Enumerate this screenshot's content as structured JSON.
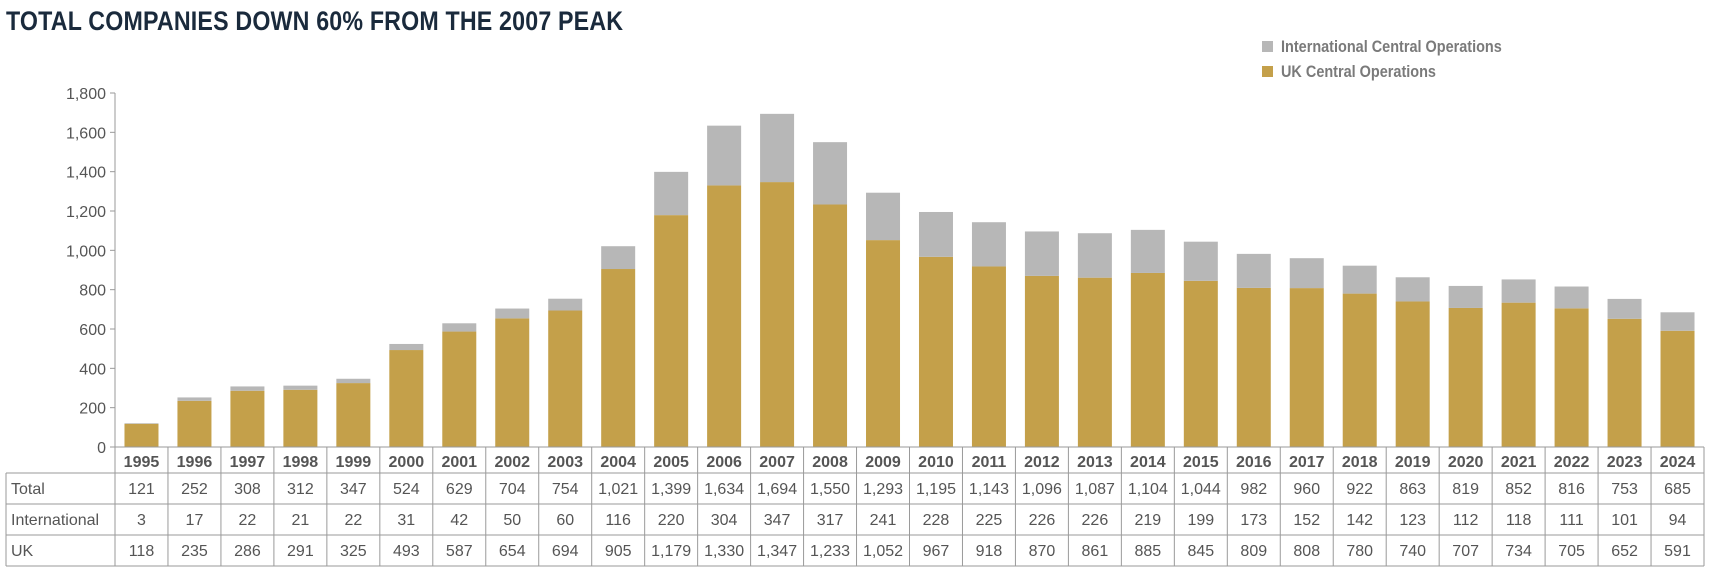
{
  "title": "TOTAL COMPANIES DOWN 60% FROM THE 2007 PEAK",
  "legend": [
    {
      "label": "International Central Operations",
      "color": "#b7b7b7"
    },
    {
      "label": "UK Central Operations",
      "color": "#c4a04a"
    }
  ],
  "chart_data": {
    "type": "bar",
    "stacked": true,
    "title": "TOTAL COMPANIES DOWN 60% FROM THE 2007 PEAK",
    "categories": [
      "1995",
      "1996",
      "1997",
      "1998",
      "1999",
      "2000",
      "2001",
      "2002",
      "2003",
      "2004",
      "2005",
      "2006",
      "2007",
      "2008",
      "2009",
      "2010",
      "2011",
      "2012",
      "2013",
      "2014",
      "2015",
      "2016",
      "2017",
      "2018",
      "2019",
      "2020",
      "2021",
      "2022",
      "2023",
      "2024"
    ],
    "series": [
      {
        "name": "UK Central Operations",
        "color": "#c4a04a",
        "values": [
          118,
          235,
          286,
          291,
          325,
          493,
          587,
          654,
          694,
          905,
          1179,
          1330,
          1347,
          1233,
          1052,
          967,
          918,
          870,
          861,
          885,
          845,
          809,
          808,
          780,
          740,
          707,
          734,
          705,
          652,
          591
        ]
      },
      {
        "name": "International Central Operations",
        "color": "#b7b7b7",
        "values": [
          3,
          17,
          22,
          21,
          22,
          31,
          42,
          50,
          60,
          116,
          220,
          304,
          347,
          317,
          241,
          228,
          225,
          226,
          226,
          219,
          199,
          173,
          152,
          142,
          123,
          112,
          118,
          111,
          101,
          94
        ]
      }
    ],
    "ylim": [
      0,
      1800
    ],
    "yticks": [
      "0",
      "200",
      "400",
      "600",
      "800",
      "1,000",
      "1,200",
      "1,400",
      "1,600",
      "1,800"
    ],
    "grid": false,
    "legend_position": "top-right",
    "table": {
      "rows": [
        {
          "label": "Total",
          "values": [
            "121",
            "252",
            "308",
            "312",
            "347",
            "524",
            "629",
            "704",
            "754",
            "1,021",
            "1,399",
            "1,634",
            "1,694",
            "1,550",
            "1,293",
            "1,195",
            "1,143",
            "1,096",
            "1,087",
            "1,104",
            "1,044",
            "982",
            "960",
            "922",
            "863",
            "819",
            "852",
            "816",
            "753",
            "685"
          ]
        },
        {
          "label": "International",
          "values": [
            "3",
            "17",
            "22",
            "21",
            "22",
            "31",
            "42",
            "50",
            "60",
            "116",
            "220",
            "304",
            "347",
            "317",
            "241",
            "228",
            "225",
            "226",
            "226",
            "219",
            "199",
            "173",
            "152",
            "142",
            "123",
            "112",
            "118",
            "111",
            "101",
            "94"
          ]
        },
        {
          "label": "UK",
          "values": [
            "118",
            "235",
            "286",
            "291",
            "325",
            "493",
            "587",
            "654",
            "694",
            "905",
            "1,179",
            "1,330",
            "1,347",
            "1,233",
            "1,052",
            "967",
            "918",
            "870",
            "861",
            "885",
            "845",
            "809",
            "808",
            "780",
            "740",
            "707",
            "734",
            "705",
            "652",
            "591"
          ]
        }
      ]
    }
  }
}
